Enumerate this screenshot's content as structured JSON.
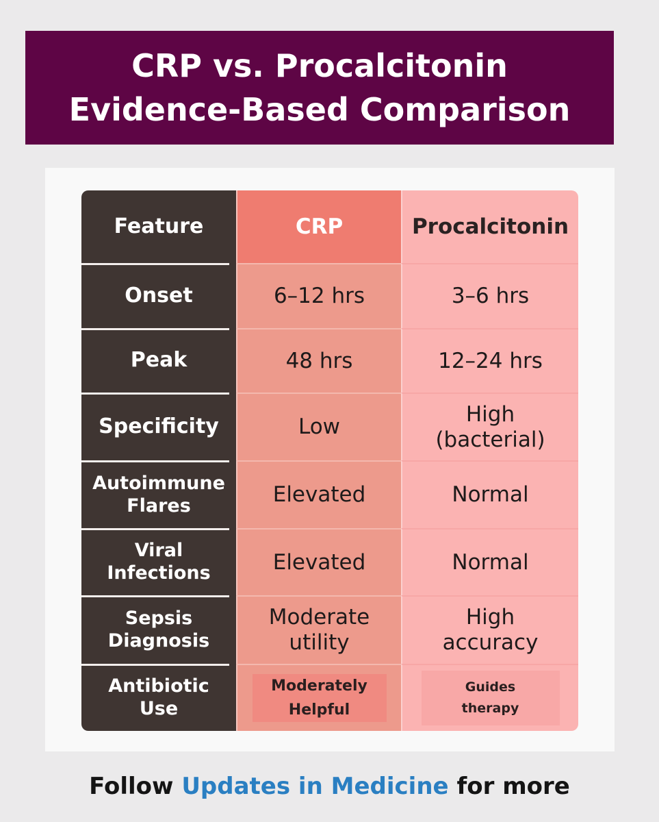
{
  "title": {
    "line1": "CRP vs. Procalcitonin",
    "line2": "Evidence-Based Comparison"
  },
  "table": {
    "headers": {
      "feature": "Feature",
      "crp": "CRP",
      "procalcitonin": "Procalcitonin"
    },
    "rows": [
      {
        "feature": [
          "Onset"
        ],
        "crp": [
          "6–12 hrs"
        ],
        "procalcitonin": [
          "3–6 hrs"
        ]
      },
      {
        "feature": [
          "Peak"
        ],
        "crp": [
          "48 hrs"
        ],
        "procalcitonin": [
          "12–24 hrs"
        ]
      },
      {
        "feature": [
          "Specificity"
        ],
        "crp": [
          "Low"
        ],
        "procalcitonin": [
          "High",
          "(bacterial)"
        ]
      },
      {
        "feature": [
          "Autoimmune",
          "Flares"
        ],
        "crp": [
          "Elevated"
        ],
        "procalcitonin": [
          "Normal"
        ]
      },
      {
        "feature": [
          "Viral",
          "Infections"
        ],
        "crp": [
          "Elevated"
        ],
        "procalcitonin": [
          "Normal"
        ]
      },
      {
        "feature": [
          "Sepsis",
          "Diagnosis"
        ],
        "crp": [
          "Moderate",
          "utility"
        ],
        "procalcitonin": [
          "High",
          "accuracy"
        ]
      },
      {
        "feature": [
          "Antibiotic",
          "Use"
        ],
        "crp": [
          "Moderately",
          "Helpful"
        ],
        "procalcitonin": [
          "Guides",
          "therapy"
        ]
      }
    ]
  },
  "footer": {
    "prefix": "Follow",
    "brand": "Updates in Medicine",
    "suffix": "for more"
  },
  "colors": {
    "banner": "#5e0545",
    "feature_column": "#3f3532",
    "crp_header": "#ef7c70",
    "crp_column": "#ed9a8c",
    "procalcitonin_column": "#fbb3b2",
    "brand_link": "#2a7fc2"
  }
}
